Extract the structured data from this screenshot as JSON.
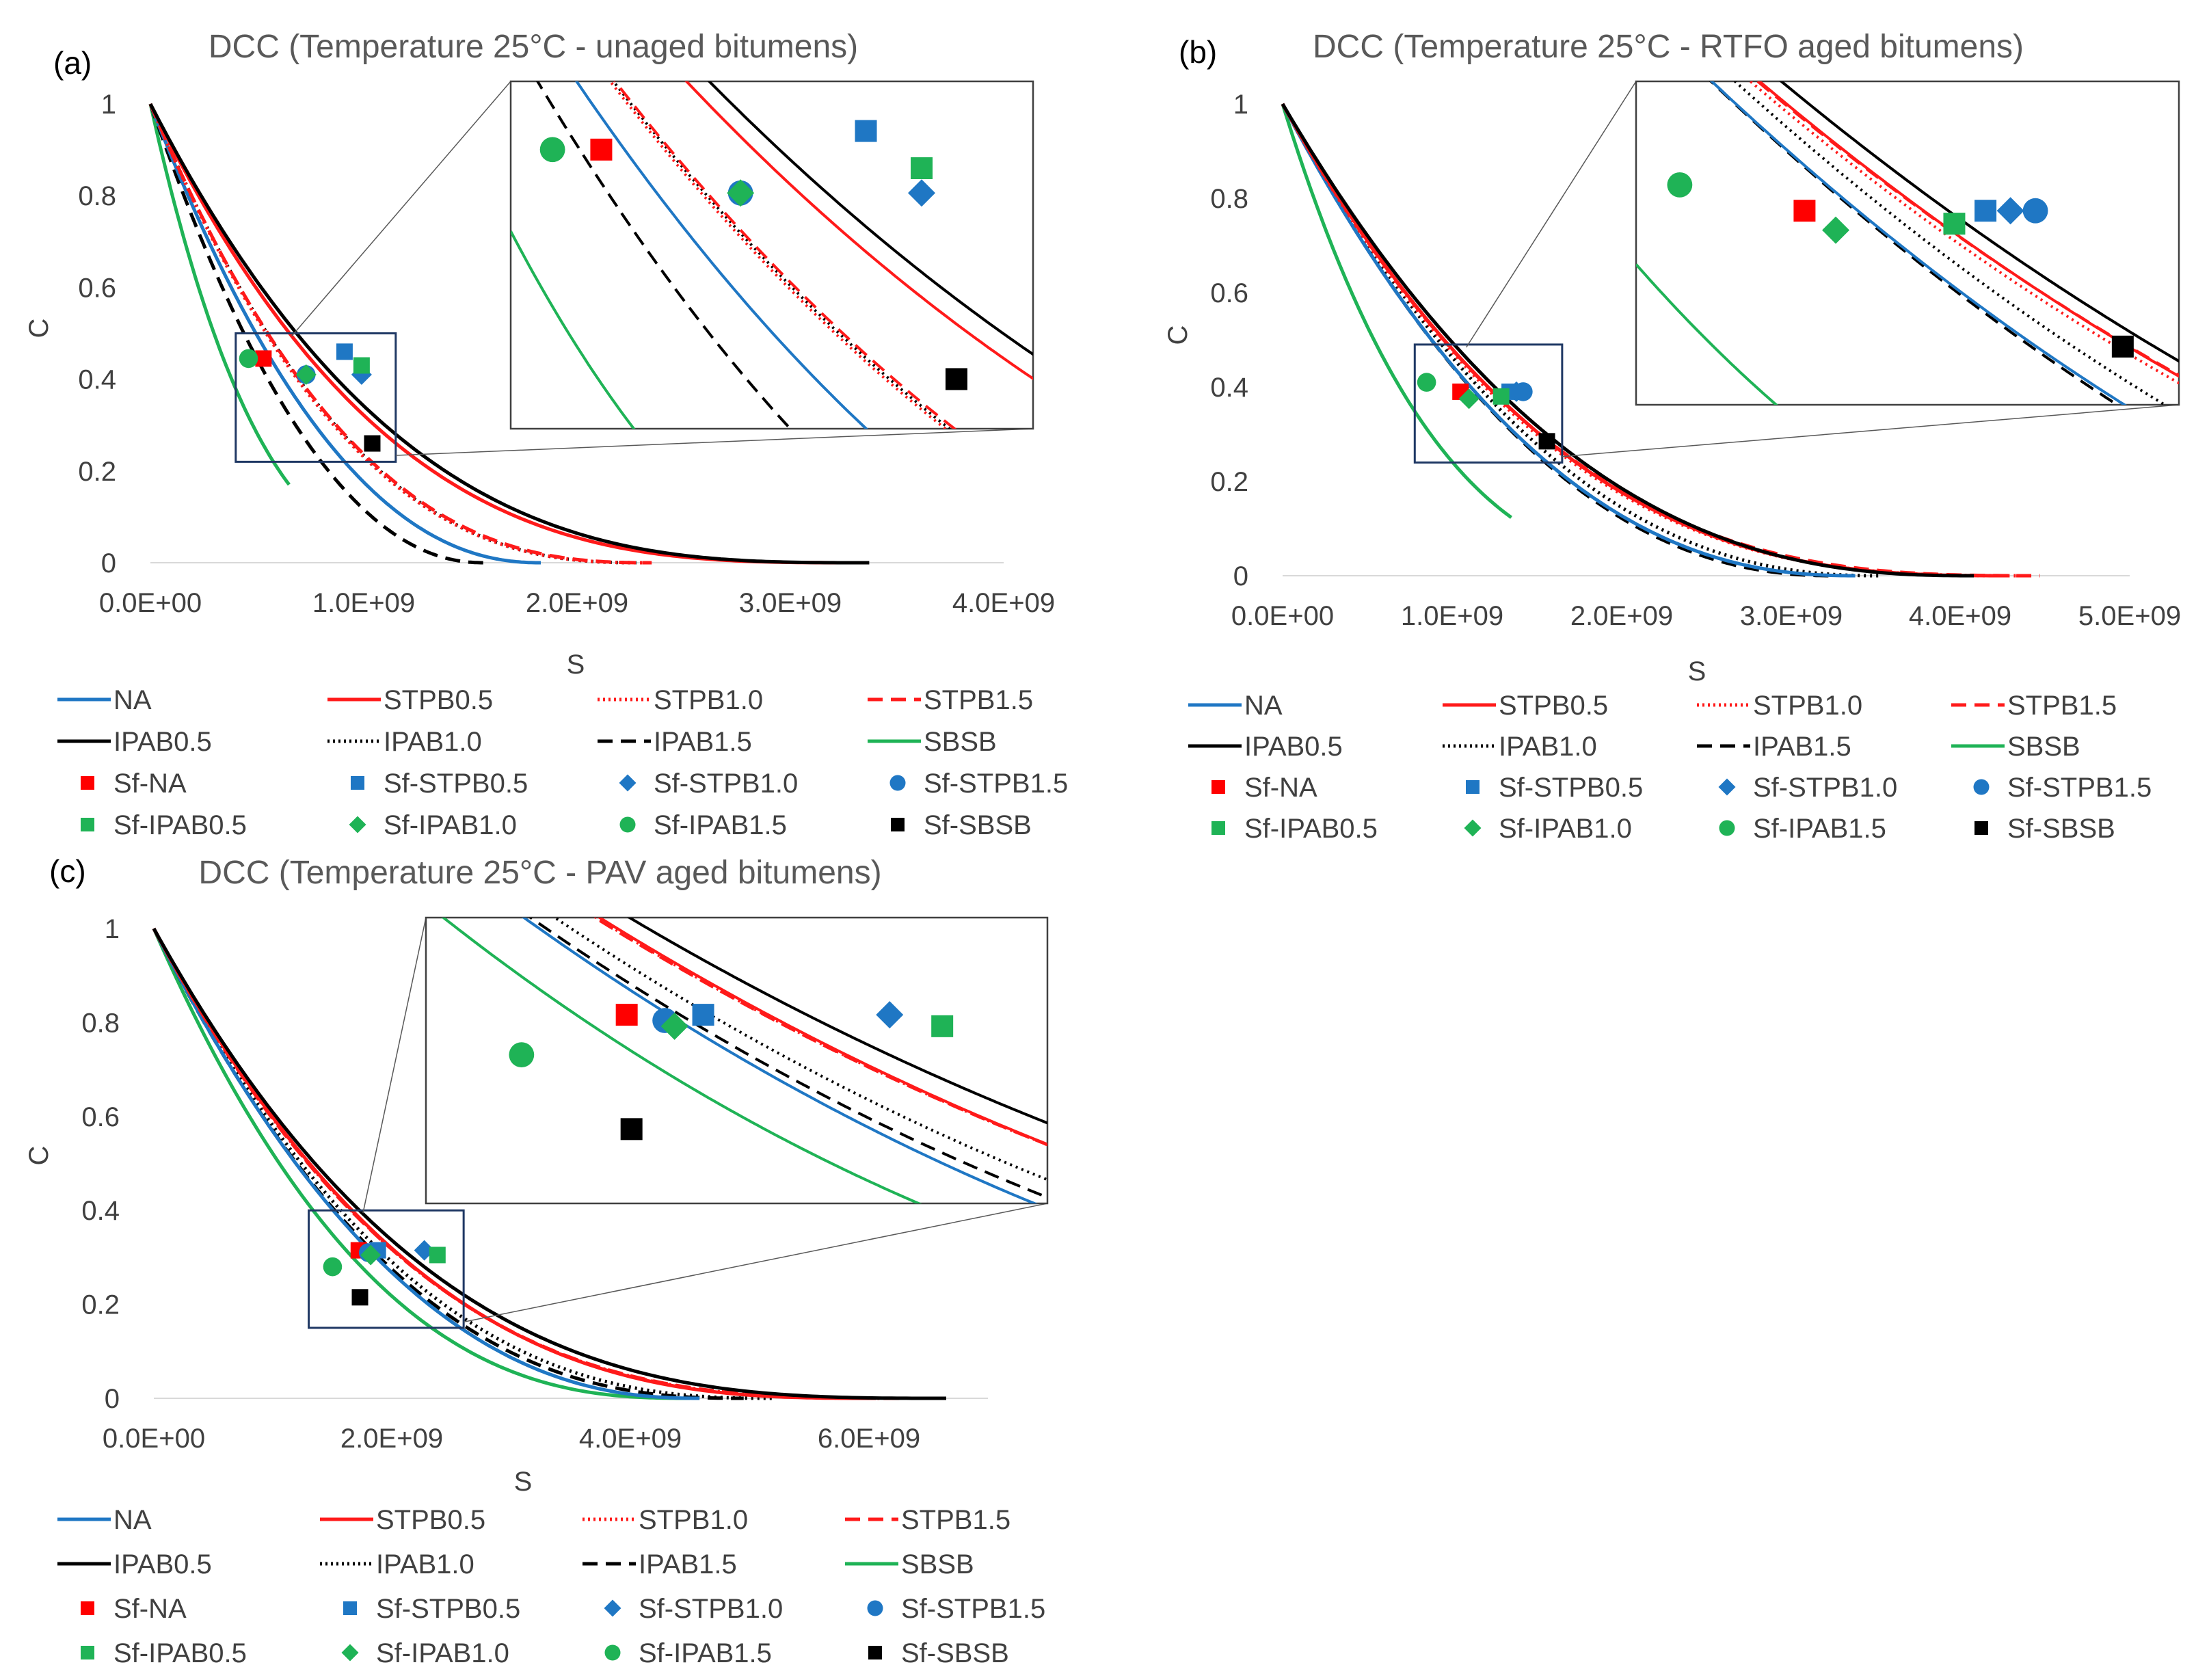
{
  "legend": {
    "lines": [
      {
        "name": "NA",
        "color": "#1f77c4",
        "dash": "solid"
      },
      {
        "name": "STPB0.5",
        "color": "#ff1a1a",
        "dash": "solid"
      },
      {
        "name": "STPB1.0",
        "color": "#ff1a1a",
        "dash": "dotted"
      },
      {
        "name": "STPB1.5",
        "color": "#ff1a1a",
        "dash": "dashed"
      },
      {
        "name": "IPAB0.5",
        "color": "#000000",
        "dash": "solid"
      },
      {
        "name": "IPAB1.0",
        "color": "#000000",
        "dash": "dotted"
      },
      {
        "name": "IPAB1.5",
        "color": "#000000",
        "dash": "dashed"
      },
      {
        "name": "SBSB",
        "color": "#1fb356",
        "dash": "solid"
      }
    ],
    "markers": [
      {
        "name": "Sf-NA",
        "color": "#ff0000",
        "shape": "square"
      },
      {
        "name": "Sf-STPB0.5",
        "color": "#1f77c4",
        "shape": "square"
      },
      {
        "name": "Sf-STPB1.0",
        "color": "#1f77c4",
        "shape": "diamond"
      },
      {
        "name": "Sf-STPB1.5",
        "color": "#1f77c4",
        "shape": "circle"
      },
      {
        "name": "Sf-IPAB0.5",
        "color": "#1fb356",
        "shape": "square"
      },
      {
        "name": "Sf-IPAB1.0",
        "color": "#1fb356",
        "shape": "diamond"
      },
      {
        "name": "Sf-IPAB1.5",
        "color": "#1fb356",
        "shape": "circle"
      },
      {
        "name": "Sf-SBSB",
        "color": "#000000",
        "shape": "square"
      }
    ]
  },
  "chart_data": [
    {
      "panel": "(a)",
      "type": "line",
      "title": "DCC (Temperature 25°C - unaged bitumens)",
      "xlabel": "S",
      "ylabel": "C",
      "xlim": [
        0,
        4000000000
      ],
      "ylim": [
        0,
        1
      ],
      "xticks": [
        "0.0E+00",
        "1.0E+09",
        "2.0E+09",
        "3.0E+09",
        "4.0E+09"
      ],
      "yticks": [
        "0",
        "0.2",
        "0.4",
        "0.6",
        "0.8",
        "1"
      ],
      "series": [
        {
          "name": "NA",
          "smax": 1830000000,
          "k": 2.2
        },
        {
          "name": "STPB0.5",
          "smax": 3350000000,
          "k": 3.2
        },
        {
          "name": "STPB1.0",
          "smax": 2320000000,
          "k": 2.6
        },
        {
          "name": "STPB1.5",
          "smax": 2350000000,
          "k": 2.6
        },
        {
          "name": "IPAB0.5",
          "smax": 3370000000,
          "k": 3.05
        },
        {
          "name": "IPAB1.0",
          "smax": 2300000000,
          "k": 2.55
        },
        {
          "name": "IPAB1.5",
          "smax": 1560000000,
          "k": 2.1
        },
        {
          "name": "SBSB",
          "smax": 1530000000,
          "k": 3.2,
          "c_end": 0.17
        }
      ],
      "points": [
        {
          "name": "Sf-NA",
          "s": 530000000,
          "c": 0.445
        },
        {
          "name": "Sf-STPB0.5",
          "s": 910000000,
          "c": 0.46
        },
        {
          "name": "Sf-STPB1.0",
          "s": 990000000,
          "c": 0.41
        },
        {
          "name": "Sf-STPB1.5",
          "s": 730000000,
          "c": 0.41
        },
        {
          "name": "Sf-IPAB0.5",
          "s": 990000000,
          "c": 0.43
        },
        {
          "name": "Sf-IPAB1.0",
          "s": 730000000,
          "c": 0.41
        },
        {
          "name": "Sf-IPAB1.5",
          "s": 460000000,
          "c": 0.445
        },
        {
          "name": "Sf-SBSB",
          "s": 1040000000,
          "c": 0.26
        }
      ],
      "zoom": {
        "x0": 400000000,
        "x1": 1150000000,
        "y0": 0.22,
        "y1": 0.5
      }
    },
    {
      "panel": "(b)",
      "type": "line",
      "title": "DCC (Temperature 25°C - RTFO aged bitumens)",
      "xlabel": "S",
      "ylabel": "C",
      "xlim": [
        0,
        5000000000
      ],
      "ylim": [
        0,
        1
      ],
      "xticks": [
        "0.0E+00",
        "1.0E+09",
        "2.0E+09",
        "3.0E+09",
        "4.0E+09",
        "5.0E+09"
      ],
      "yticks": [
        "0",
        "0.2",
        "0.4",
        "0.6",
        "0.8",
        "1"
      ],
      "series": [
        {
          "name": "NA",
          "smax": 3380000000,
          "k": 2.3
        },
        {
          "name": "STPB0.5",
          "smax": 4280000000,
          "k": 2.75
        },
        {
          "name": "STPB1.0",
          "smax": 4350000000,
          "k": 2.85
        },
        {
          "name": "STPB1.5",
          "smax": 4470000000,
          "k": 2.9
        },
        {
          "name": "IPAB0.5",
          "smax": 4080000000,
          "k": 2.5
        },
        {
          "name": "IPAB1.0",
          "smax": 3520000000,
          "k": 2.3
        },
        {
          "name": "IPAB1.5",
          "smax": 3250000000,
          "k": 2.2
        },
        {
          "name": "SBSB",
          "smax": 3000000000,
          "k": 3.5,
          "c_end": 0.12
        }
      ],
      "points": [
        {
          "name": "Sf-NA",
          "s": 1050000000,
          "c": 0.39
        },
        {
          "name": "Sf-STPB0.5",
          "s": 1340000000,
          "c": 0.39
        },
        {
          "name": "Sf-STPB1.0",
          "s": 1380000000,
          "c": 0.39
        },
        {
          "name": "Sf-STPB1.5",
          "s": 1420000000,
          "c": 0.39
        },
        {
          "name": "Sf-IPAB0.5",
          "s": 1290000000,
          "c": 0.38
        },
        {
          "name": "Sf-IPAB1.0",
          "s": 1100000000,
          "c": 0.375
        },
        {
          "name": "Sf-IPAB1.5",
          "s": 850000000,
          "c": 0.41
        },
        {
          "name": "Sf-SBSB",
          "s": 1560000000,
          "c": 0.285
        }
      ],
      "zoom": {
        "x0": 780000000,
        "x1": 1650000000,
        "y0": 0.24,
        "y1": 0.49
      }
    },
    {
      "panel": "(c)",
      "type": "line",
      "title": "DCC (Temperature 25°C - PAV aged bitumens)",
      "xlabel": "S",
      "ylabel": "C",
      "xlim": [
        0,
        7000000000
      ],
      "ylim": [
        0,
        1
      ],
      "xticks": [
        "0.0E+00",
        "2.0E+09",
        "4.0E+09",
        "6.0E+09"
      ],
      "yticks": [
        "0",
        "0.2",
        "0.4",
        "0.6",
        "0.8",
        "1"
      ],
      "series": [
        {
          "name": "NA",
          "smax": 4580000000,
          "k": 2.3
        },
        {
          "name": "STPB0.5",
          "smax": 6050000000,
          "k": 2.85
        },
        {
          "name": "STPB1.0",
          "smax": 6200000000,
          "k": 2.95
        },
        {
          "name": "STPB1.5",
          "smax": 6280000000,
          "k": 3.0
        },
        {
          "name": "IPAB0.5",
          "smax": 6650000000,
          "k": 3.05
        },
        {
          "name": "IPAB1.0",
          "smax": 5200000000,
          "k": 2.55
        },
        {
          "name": "IPAB1.5",
          "smax": 4950000000,
          "k": 2.5
        },
        {
          "name": "SBSB",
          "smax": 4500000000,
          "k": 2.6
        }
      ],
      "points": [
        {
          "name": "Sf-NA",
          "s": 1720000000,
          "c": 0.315
        },
        {
          "name": "Sf-STPB0.5",
          "s": 1880000000,
          "c": 0.315
        },
        {
          "name": "Sf-STPB1.0",
          "s": 2270000000,
          "c": 0.315
        },
        {
          "name": "Sf-STPB1.5",
          "s": 1800000000,
          "c": 0.31
        },
        {
          "name": "Sf-IPAB0.5",
          "s": 2380000000,
          "c": 0.305
        },
        {
          "name": "Sf-IPAB1.0",
          "s": 1820000000,
          "c": 0.305
        },
        {
          "name": "Sf-IPAB1.5",
          "s": 1500000000,
          "c": 0.28
        },
        {
          "name": "Sf-SBSB",
          "s": 1730000000,
          "c": 0.215
        }
      ],
      "zoom": {
        "x0": 1300000000,
        "x1": 2600000000,
        "y0": 0.15,
        "y1": 0.4
      }
    }
  ]
}
